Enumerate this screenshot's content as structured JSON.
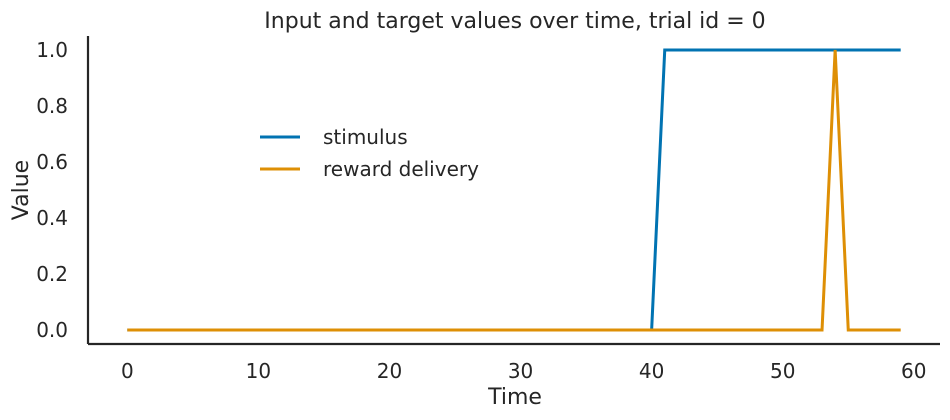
{
  "chart_data": {
    "type": "line",
    "title": "Input and target values over time, trial id = 0",
    "xlabel": "Time",
    "ylabel": "Value",
    "xlim": [
      -3,
      62
    ],
    "ylim": [
      -0.05,
      1.05
    ],
    "xticks": [
      0,
      10,
      20,
      30,
      40,
      50,
      60
    ],
    "yticks": [
      "0.0",
      "0.2",
      "0.4",
      "0.6",
      "0.8",
      "1.0"
    ],
    "grid": false,
    "legend_placement": "center-left",
    "series": [
      {
        "name": "stimulus",
        "color": "#0173b2",
        "x": [
          0,
          40,
          41,
          59
        ],
        "y": [
          0,
          0,
          1,
          1
        ]
      },
      {
        "name": "reward delivery",
        "color": "#de8f05",
        "x": [
          0,
          53,
          54,
          55,
          59
        ],
        "y": [
          0,
          0,
          1,
          0,
          0
        ]
      }
    ]
  }
}
